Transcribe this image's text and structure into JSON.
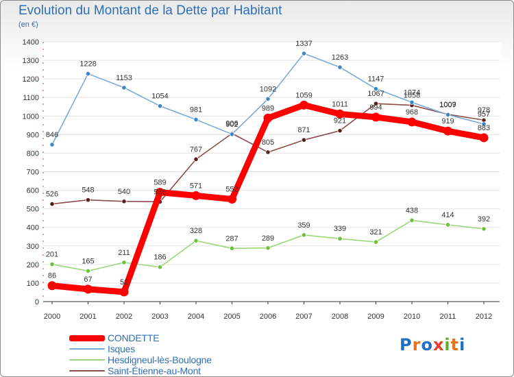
{
  "header": {
    "title": "Evolution du Montant de la Dette par Habitant",
    "unit": "(en €)"
  },
  "brand": {
    "text": "Proxiti",
    "colors": [
      "#1f6fc4",
      "#e8731c",
      "#1f6fc4",
      "#e23c2c",
      "#5fae2e",
      "#e8731c",
      "#1f6fc4"
    ]
  },
  "chart_data": {
    "type": "line",
    "title": "Evolution du Montant de la Dette par Habitant",
    "ylabel": "(en €)",
    "xlabel": "",
    "ylim": [
      0,
      1400
    ],
    "y_ticks": [
      0,
      100,
      200,
      300,
      400,
      500,
      600,
      700,
      800,
      900,
      1000,
      1100,
      1200,
      1300,
      1400
    ],
    "categories": [
      "2000",
      "2001",
      "2002",
      "2003",
      "2004",
      "2005",
      "2006",
      "2007",
      "2008",
      "2009",
      "2010",
      "2011",
      "2012"
    ],
    "grid": true,
    "legend_position": "bottom-left",
    "series": [
      {
        "name": "Hesdigneul-lès-Boulogne",
        "color": "#9bd67a",
        "marker": "#6cc23a",
        "style": "thin",
        "values": [
          201,
          165,
          211,
          186,
          328,
          287,
          289,
          359,
          339,
          321,
          438,
          414,
          392
        ]
      },
      {
        "name": "Saint-Étienne-au-Mont",
        "color": "#8c4a4a",
        "marker": "#5a1e1e",
        "style": "thin",
        "values": [
          526,
          548,
          540,
          538,
          767,
          906,
          805,
          871,
          921,
          1067,
          1058,
          1009,
          978
        ]
      },
      {
        "name": "Isques",
        "color": "#7aaad6",
        "marker": "#3f86c8",
        "style": "thin",
        "values": [
          846,
          1228,
          1153,
          1054,
          981,
          902,
          1092,
          1337,
          1263,
          1147,
          1074,
          1007,
          957
        ]
      },
      {
        "name": "CONDETTE",
        "color": "#ff0000",
        "marker": "#ff0000",
        "style": "thick",
        "values": [
          86,
          67,
          52,
          589,
          571,
          552,
          989,
          1059,
          1011,
          994,
          968,
          919,
          883
        ]
      }
    ],
    "legend_order": [
      "CONDETTE",
      "Isques",
      "Hesdigneul-lès-Boulogne",
      "Saint-Étienne-au-Mont"
    ]
  }
}
